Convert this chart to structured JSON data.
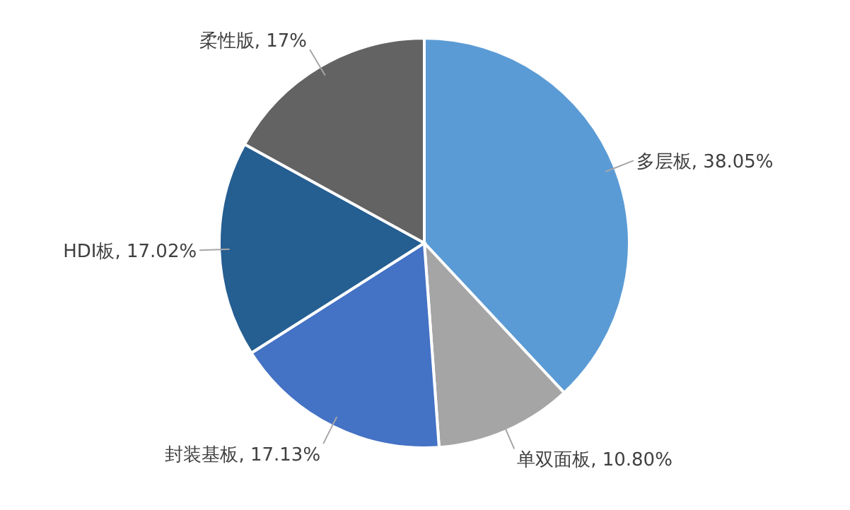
{
  "chart_data": {
    "type": "pie",
    "categories": [
      "多层板",
      "单双面板",
      "封装基板",
      "HDI板",
      "柔性版"
    ],
    "values": [
      38.05,
      10.8,
      17.13,
      17.02,
      17
    ],
    "value_labels": [
      "38.05%",
      "10.80%",
      "17.13%",
      "17.02%",
      "17%"
    ],
    "colors": [
      "#5b9bd5",
      "#a5a5a5",
      "#4472c4",
      "#255e91",
      "#636363"
    ],
    "legend": false
  }
}
